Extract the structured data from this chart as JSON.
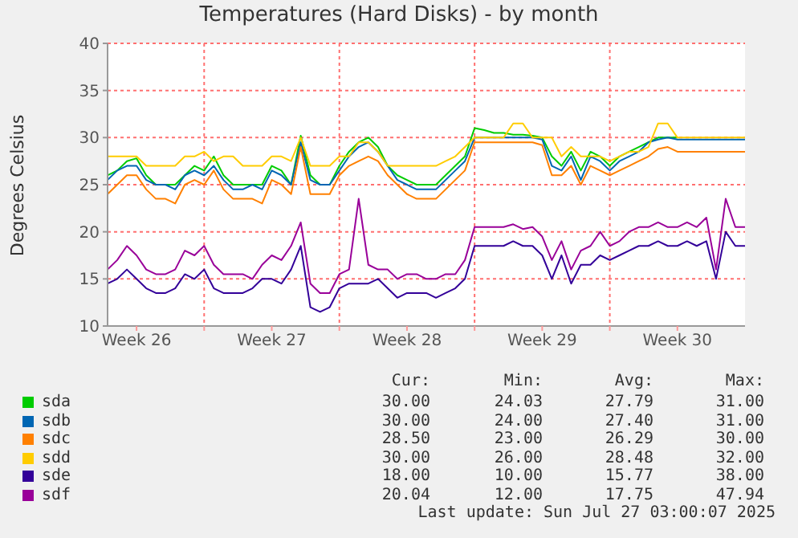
{
  "chart_data": {
    "type": "line",
    "title": "Temperatures (Hard Disks) - by month",
    "ylabel": "Degrees Celsius",
    "x": [
      "2025-06-25T00:00",
      "2025-06-25T12:00",
      "2025-06-26T00:00",
      "2025-06-26T12:00",
      "2025-06-27T00:00",
      "2025-06-27T12:00",
      "2025-06-28T00:00",
      "2025-06-28T12:00",
      "2025-06-29T00:00",
      "2025-06-29T12:00",
      "2025-06-30T00:00",
      "2025-06-30T12:00",
      "2025-07-01T00:00",
      "2025-07-01T12:00",
      "2025-07-02T00:00",
      "2025-07-02T12:00",
      "2025-07-03T00:00",
      "2025-07-03T12:00",
      "2025-07-04T00:00",
      "2025-07-04T12:00",
      "2025-07-05T00:00",
      "2025-07-05T12:00",
      "2025-07-06T00:00",
      "2025-07-06T12:00",
      "2025-07-07T00:00",
      "2025-07-07T12:00",
      "2025-07-08T00:00",
      "2025-07-08T12:00",
      "2025-07-09T00:00",
      "2025-07-09T12:00",
      "2025-07-10T00:00",
      "2025-07-10T12:00",
      "2025-07-11T00:00",
      "2025-07-11T12:00",
      "2025-07-12T00:00",
      "2025-07-12T12:00",
      "2025-07-13T00:00",
      "2025-07-13T12:00",
      "2025-07-14T00:00",
      "2025-07-14T12:00",
      "2025-07-15T00:00",
      "2025-07-15T12:00",
      "2025-07-16T00:00",
      "2025-07-16T12:00",
      "2025-07-17T00:00",
      "2025-07-17T12:00",
      "2025-07-18T00:00",
      "2025-07-18T12:00",
      "2025-07-19T00:00",
      "2025-07-19T12:00",
      "2025-07-20T00:00",
      "2025-07-20T12:00",
      "2025-07-21T00:00",
      "2025-07-21T12:00",
      "2025-07-22T00:00",
      "2025-07-22T12:00",
      "2025-07-23T00:00",
      "2025-07-23T12:00",
      "2025-07-24T00:00",
      "2025-07-24T12:00",
      "2025-07-25T00:00",
      "2025-07-25T12:00",
      "2025-07-26T00:00",
      "2025-07-26T12:00",
      "2025-07-27T00:00",
      "2025-07-27T12:00",
      "2025-07-28T00:00"
    ],
    "series": [
      {
        "name": "sda",
        "color": "#00cc00",
        "values": [
          26,
          26.5,
          27.5,
          27.8,
          26,
          25,
          25,
          25,
          26,
          27,
          26.5,
          28,
          26,
          25,
          25,
          25,
          25,
          27,
          26.5,
          25,
          30.2,
          26,
          25,
          25,
          27,
          28.5,
          29.5,
          30,
          29,
          27,
          26,
          25.5,
          25,
          25,
          25,
          26,
          27,
          28,
          31,
          30.8,
          30.5,
          30.5,
          30.3,
          30.3,
          30.2,
          30,
          28,
          27,
          28.5,
          26.5,
          28.5,
          28,
          27,
          28,
          28.5,
          29,
          29.5,
          30,
          30,
          30,
          null,
          null,
          null,
          null,
          null,
          null,
          null
        ]
      },
      {
        "name": "sdb",
        "color": "#0066b3",
        "values": [
          25.5,
          26.5,
          27,
          27,
          25.5,
          25,
          25,
          24.5,
          26,
          26.5,
          26,
          27,
          25.5,
          24.5,
          24.5,
          25,
          24.5,
          26.5,
          26,
          25,
          29.5,
          25.5,
          25,
          25,
          26.5,
          28,
          29,
          29.5,
          28.5,
          27,
          25.5,
          25,
          24.5,
          24.5,
          24.5,
          25.5,
          26.5,
          27.5,
          30,
          30,
          30,
          30,
          30,
          30,
          30,
          29.8,
          27,
          26.5,
          28,
          25.5,
          28,
          27.5,
          26.5,
          27.5,
          28,
          28.5,
          29.5,
          29.8,
          30,
          29.8,
          29.8,
          29.8,
          29.8,
          29.8,
          29.8,
          29.8,
          29.8
        ]
      },
      {
        "name": "sdc",
        "color": "#ff8000",
        "values": [
          24,
          25,
          26,
          26,
          24.5,
          23.5,
          23.5,
          23,
          25,
          25.5,
          25,
          26.5,
          24.5,
          23.5,
          23.5,
          23.5,
          23,
          25.5,
          25,
          24,
          29,
          24,
          24,
          24,
          26,
          27,
          27.5,
          28,
          27.5,
          26,
          25,
          24,
          23.5,
          23.5,
          23.5,
          24.5,
          25.5,
          26.5,
          29.5,
          29.5,
          29.5,
          29.5,
          29.5,
          29.5,
          29.5,
          29.2,
          26,
          26,
          27,
          25,
          27,
          26.5,
          26,
          26.5,
          27,
          27.5,
          28,
          28.8,
          29,
          28.5,
          28.5,
          28.5,
          28.5,
          28.5,
          28.5,
          28.5,
          28.5
        ]
      },
      {
        "name": "sdd",
        "color": "#ffcc00",
        "values": [
          28,
          28,
          28,
          28,
          27,
          27,
          27,
          27,
          28,
          28,
          28.5,
          27.5,
          28,
          28,
          27,
          27,
          27,
          28,
          28,
          27.5,
          30,
          27,
          27,
          27,
          28,
          28,
          29.5,
          29.5,
          28.5,
          27,
          27,
          27,
          27,
          27,
          27,
          27.5,
          28,
          29,
          30,
          30,
          30,
          30,
          31.5,
          31.5,
          30,
          30,
          30,
          28,
          29,
          28,
          28,
          28,
          27.5,
          28,
          28.5,
          28.5,
          29,
          31.5,
          31.5,
          30,
          30,
          30,
          30,
          30,
          30,
          30,
          30
        ]
      },
      {
        "name": "sde",
        "color": "#330099",
        "values": [
          14.5,
          15,
          16,
          15,
          14,
          13.5,
          13.5,
          14,
          15.5,
          15,
          16,
          14,
          13.5,
          13.5,
          13.5,
          14,
          15,
          15,
          14.5,
          16,
          18.5,
          12,
          11.5,
          12,
          14,
          14.5,
          14.5,
          14.5,
          15,
          14,
          13,
          13.5,
          13.5,
          13.5,
          13,
          13.5,
          14,
          15,
          18.5,
          18.5,
          18.5,
          18.5,
          19,
          18.5,
          18.5,
          17.5,
          15,
          17.5,
          14.5,
          16.5,
          16.5,
          17.5,
          17,
          17.5,
          18,
          18.5,
          18.5,
          19,
          18.5,
          18.5,
          19,
          18.5,
          19,
          15,
          20,
          18.5,
          18.5
        ]
      },
      {
        "name": "sdf",
        "color": "#990099",
        "values": [
          16,
          17,
          18.5,
          17.5,
          16,
          15.5,
          15.5,
          16,
          18,
          17.5,
          18.5,
          16.5,
          15.5,
          15.5,
          15.5,
          15,
          16.5,
          17.5,
          17,
          18.5,
          21,
          14.5,
          13.5,
          13.5,
          15.5,
          16,
          23.5,
          16.5,
          16,
          16,
          15,
          15.5,
          15.5,
          15,
          15,
          15.5,
          15.5,
          17,
          20.5,
          20.5,
          20.5,
          20.5,
          20.8,
          20.3,
          20.5,
          19.5,
          17,
          19,
          16,
          18,
          18.5,
          20,
          18.5,
          19,
          20,
          20.5,
          20.5,
          21,
          20.5,
          20.5,
          21,
          20.5,
          21.5,
          16,
          23.5,
          20.5,
          20.5
        ]
      }
    ],
    "xlim": [
      "2025-06-25T00:00",
      "2025-07-28T00:00"
    ],
    "xticks": [
      {
        "value": "2025-06-26T12:00",
        "label": "Week 26"
      },
      {
        "value": "2025-06-30T00:00",
        "label": null
      },
      {
        "value": "2025-07-03T12:00",
        "label": "Week 27"
      },
      {
        "value": "2025-07-07T00:00",
        "label": null
      },
      {
        "value": "2025-07-10T12:00",
        "label": "Week 28"
      },
      {
        "value": "2025-07-14T00:00",
        "label": null
      },
      {
        "value": "2025-07-17T12:00",
        "label": "Week 29"
      },
      {
        "value": "2025-07-21T00:00",
        "label": null
      },
      {
        "value": "2025-07-24T12:00",
        "label": "Week 30"
      }
    ],
    "ylim": [
      10,
      40
    ],
    "yticks": [
      10,
      15,
      20,
      25,
      30,
      35,
      40
    ],
    "grid": true,
    "legend": "bottom",
    "annotations": [
      "Cur:",
      "Min:",
      "Avg:",
      "Max:",
      "30.00",
      "24.03",
      "27.79",
      "31.00",
      "30.00",
      "24.00",
      "27.40",
      "31.00",
      "28.50",
      "23.00",
      "26.29",
      "30.00",
      "30.00",
      "26.00",
      "28.48",
      "32.00",
      "18.00",
      "10.00",
      "15.77",
      "38.00",
      "20.04",
      "12.00",
      "17.75",
      "47.94",
      "Last update: Sun Jul 27 03:00:07 2025"
    ]
  }
}
